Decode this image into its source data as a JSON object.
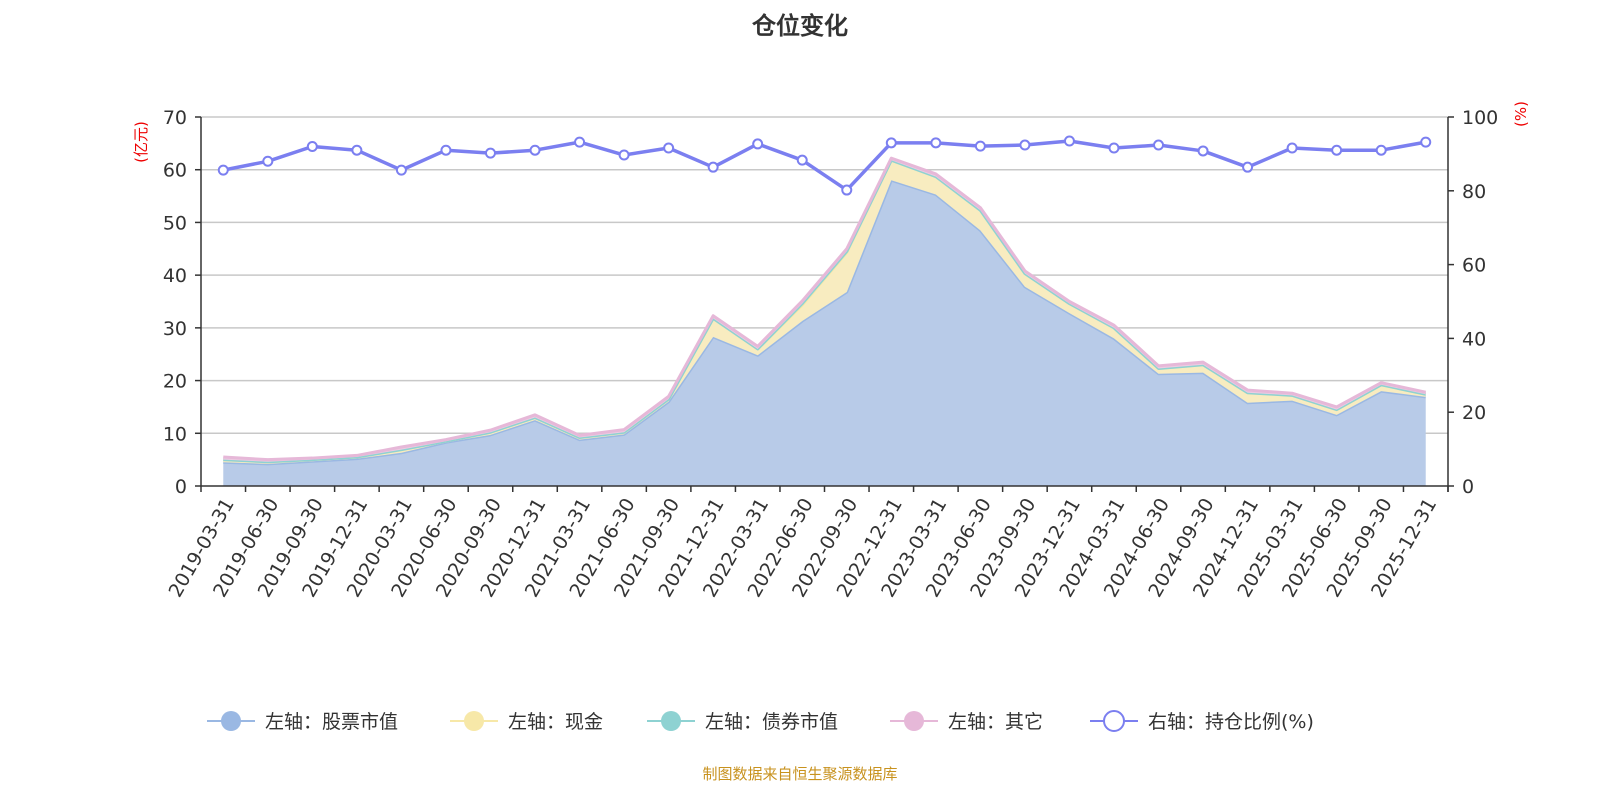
{
  "chart_data": {
    "type": "area",
    "title": "仓位变化",
    "source": "制图数据来自恒生聚源数据库",
    "ylabel_left": "(亿元)",
    "ylabel_right": "(%)",
    "ylim_left": [
      0,
      70
    ],
    "ylim_right": [
      0,
      100
    ],
    "yticks_left": [
      0,
      10,
      20,
      30,
      40,
      50,
      60,
      70
    ],
    "yticks_right": [
      0,
      20,
      40,
      60,
      80,
      100
    ],
    "grid": true,
    "legend_position": "bottom",
    "categories": [
      "2019-03-31",
      "2019-06-30",
      "2019-09-30",
      "2019-12-31",
      "2020-03-31",
      "2020-06-30",
      "2020-09-30",
      "2020-12-31",
      "2021-03-31",
      "2021-06-30",
      "2021-09-30",
      "2021-12-31",
      "2022-03-31",
      "2022-06-30",
      "2022-09-30",
      "2022-12-31",
      "2023-03-31",
      "2023-06-30",
      "2023-09-30",
      "2023-12-31",
      "2024-03-31",
      "2024-06-30",
      "2024-09-30",
      "2024-12-31",
      "2025-03-31",
      "2025-06-30",
      "2025-09-30",
      "2025-12-31"
    ],
    "series": [
      {
        "name": "左轴：股票市值",
        "axis": "left",
        "stacked": true,
        "color": "#9ab8e3",
        "fill": "#b8cbe8",
        "values": [
          4.5,
          4.2,
          4.7,
          5.2,
          6.3,
          8.3,
          9.7,
          12.5,
          8.8,
          9.8,
          16.0,
          28.3,
          24.8,
          31.3,
          36.8,
          58.0,
          55.3,
          48.5,
          37.8,
          32.8,
          28.0,
          21.3,
          21.5,
          15.8,
          16.2,
          13.5,
          18.0,
          16.9
        ]
      },
      {
        "name": "左轴：现金",
        "axis": "left",
        "stacked": true,
        "color": "#f7e8a8",
        "fill": "#f8ecc0",
        "values": [
          0.5,
          0.4,
          0.3,
          0.3,
          0.6,
          0.2,
          0.5,
          0.5,
          0.4,
          0.4,
          0.5,
          3.5,
          1.2,
          3.0,
          7.5,
          3.8,
          3.4,
          3.8,
          2.5,
          1.8,
          2.0,
          1.0,
          1.5,
          1.9,
          1.0,
          1.0,
          1.2,
          0.5
        ]
      },
      {
        "name": "左轴：债券市值",
        "axis": "left",
        "stacked": true,
        "color": "#8ed2d2",
        "fill": "#a9dede",
        "values": [
          0,
          0,
          0,
          0,
          0,
          0,
          0,
          0,
          0,
          0,
          0,
          0,
          0,
          0.3,
          0.2,
          0,
          0,
          0,
          0,
          0,
          0,
          0,
          0,
          0,
          0,
          0,
          0,
          0
        ]
      },
      {
        "name": "左轴：其它",
        "axis": "left",
        "stacked": true,
        "color": "#e6b8d8",
        "fill": "#edcbe2",
        "values": [
          0.5,
          0.4,
          0.3,
          0.3,
          0.5,
          0.3,
          0.4,
          0.5,
          0.4,
          0.5,
          0.5,
          0.5,
          0.5,
          0.5,
          0.5,
          0.4,
          0.5,
          0.5,
          0.5,
          0.4,
          0.5,
          0.5,
          0.5,
          0.5,
          0.4,
          0.5,
          0.4,
          0.4
        ]
      },
      {
        "name": "右轴：持仓比例(%)",
        "axis": "right",
        "stacked": false,
        "color": "#7b7ff0",
        "values": [
          85.6,
          88.0,
          92.0,
          91.0,
          85.6,
          91.0,
          90.2,
          91.0,
          93.2,
          89.7,
          91.6,
          86.4,
          92.7,
          88.3,
          80.2,
          93.0,
          93.0,
          92.1,
          92.4,
          93.5,
          91.6,
          92.4,
          90.8,
          86.4,
          91.6,
          91.0,
          91.0,
          93.2
        ]
      }
    ]
  }
}
